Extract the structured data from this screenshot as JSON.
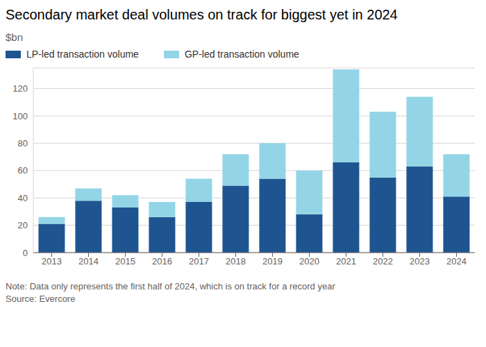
{
  "chart_data": {
    "type": "bar",
    "title": "Secondary market deal volumes on track for biggest yet in 2024",
    "subtitle": "$bn",
    "categories": [
      "2013",
      "2014",
      "2015",
      "2016",
      "2017",
      "2018",
      "2019",
      "2020",
      "2021",
      "2022",
      "2023",
      "2024"
    ],
    "series": [
      {
        "name": "LP-led transaction volume",
        "color": "#1e5591",
        "values": [
          21,
          38,
          33,
          26,
          37,
          49,
          54,
          28,
          66,
          55,
          63,
          41
        ]
      },
      {
        "name": "GP-led transaction volume",
        "color": "#93d5e6",
        "values": [
          5,
          9,
          9,
          11,
          17,
          23,
          26,
          32,
          68,
          48,
          51,
          31
        ]
      }
    ],
    "ylim": [
      0,
      135
    ],
    "yticks": [
      0,
      20,
      40,
      60,
      80,
      100,
      120
    ],
    "grid": true,
    "stacked": true,
    "legend": "top-left",
    "notes": [
      "Note: Data only represents the first half of 2024, which is on track for a record year",
      "Source: Evercore"
    ]
  }
}
